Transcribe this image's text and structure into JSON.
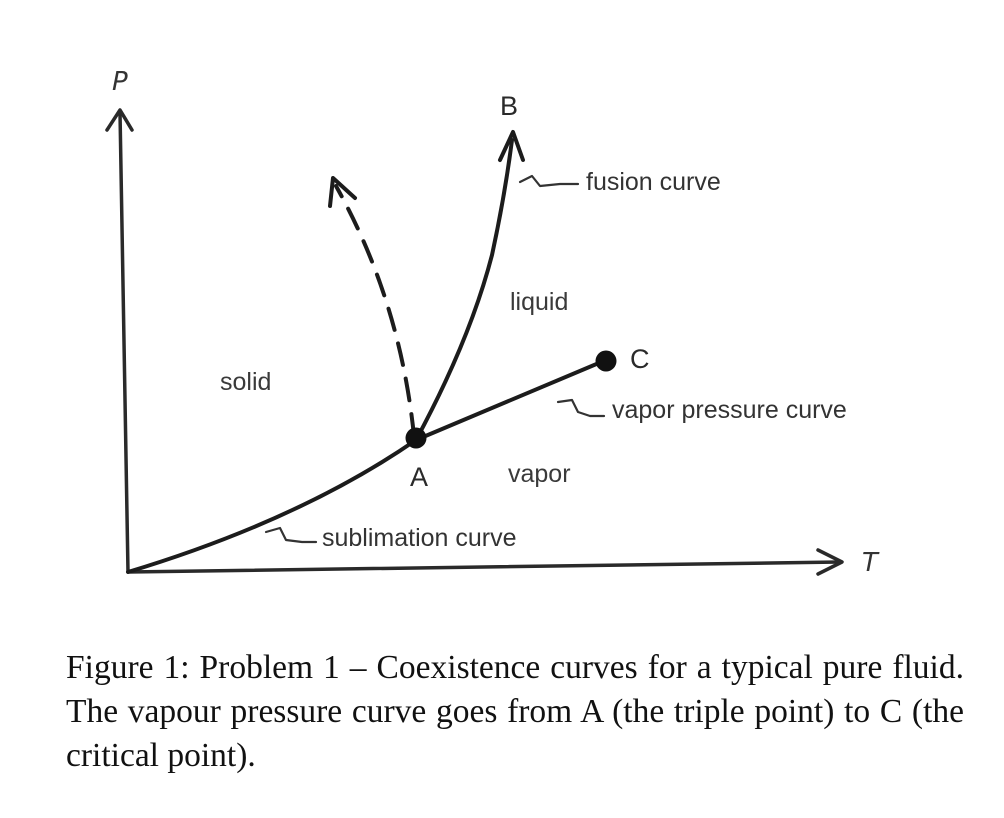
{
  "axes": {
    "y_label": "P",
    "x_label": "T"
  },
  "points": {
    "triple": "A",
    "critical": "C",
    "fusion_end": "B"
  },
  "regions": {
    "solid": "solid",
    "liquid": "liquid",
    "vapor": "vapor"
  },
  "curves": {
    "fusion": "fusion curve",
    "vapor_pressure": "vapor pressure curve",
    "sublimation": "sublimation curve"
  },
  "caption": "Figure 1:  Problem 1 – Coexistence curves for a typical pure fluid. The vapour pressure curve goes from A (the triple point) to C (the critical point)."
}
